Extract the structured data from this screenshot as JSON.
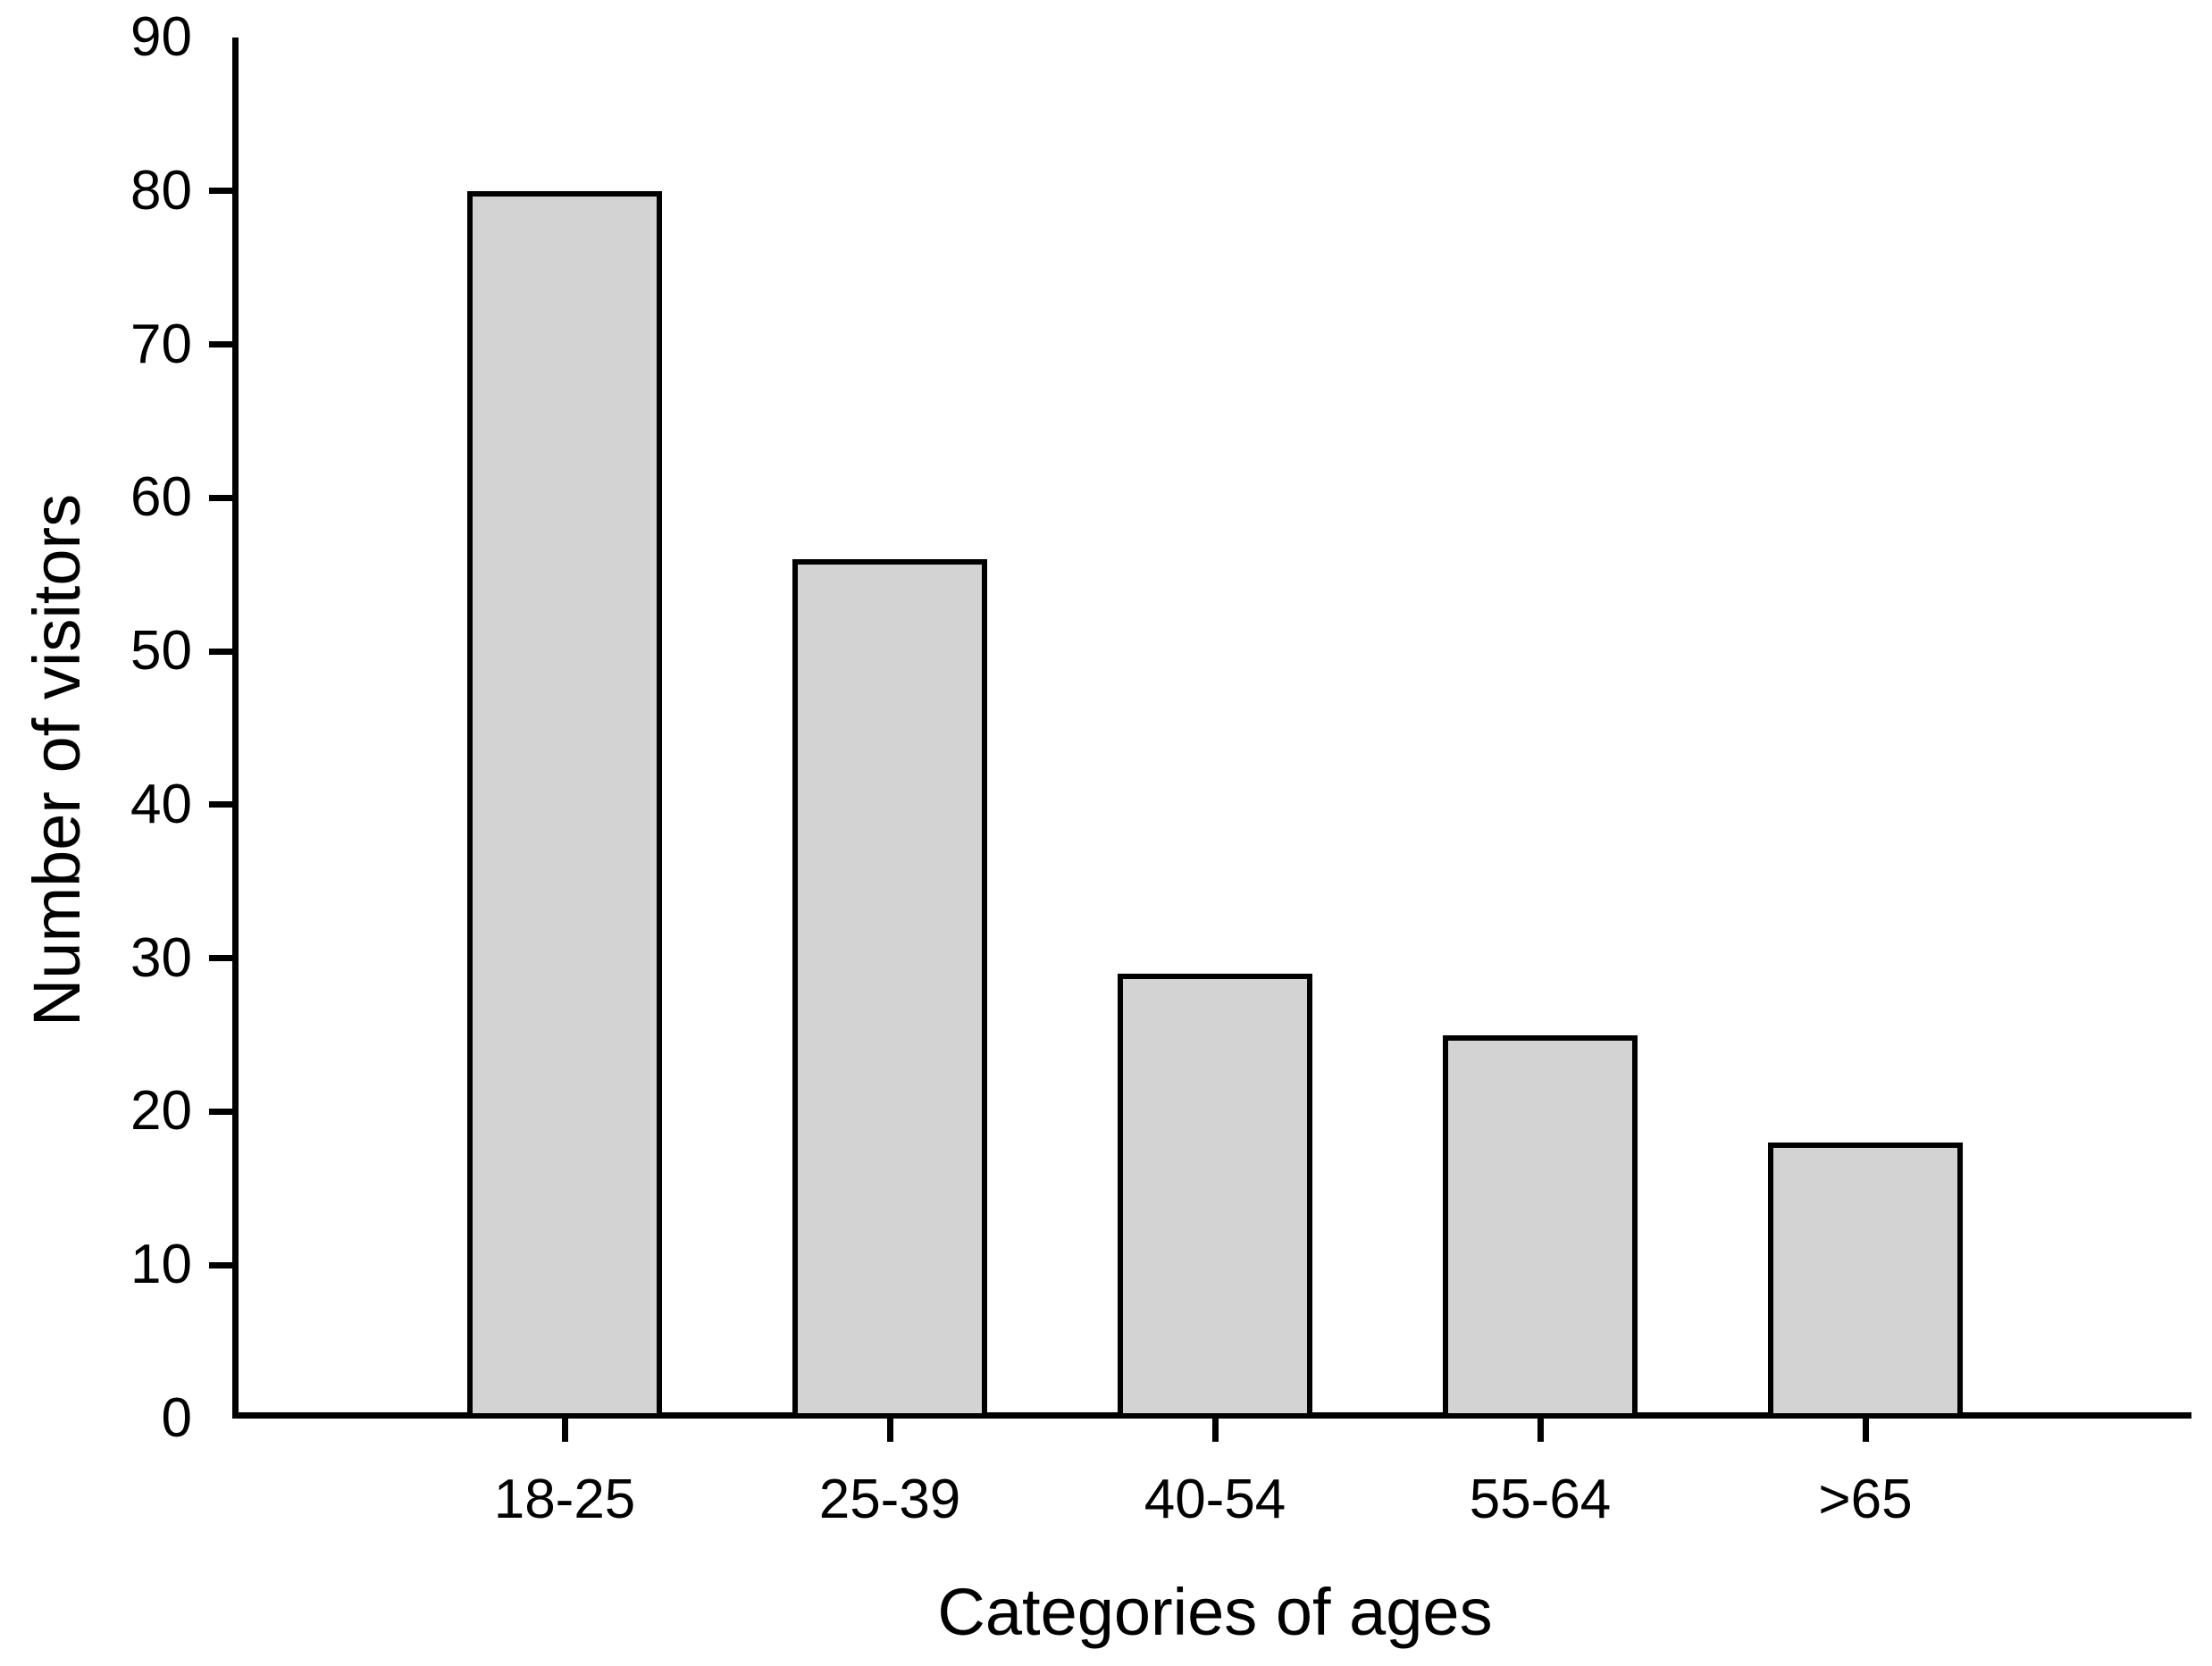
{
  "chart_data": {
    "type": "bar",
    "categories": [
      "18-25",
      "25-39",
      "40-54",
      "55-64",
      ">65"
    ],
    "values": [
      80,
      56,
      29,
      25,
      18
    ],
    "title": "",
    "xlabel": "Categories of ages",
    "ylabel": "Number of visitors",
    "ylim": [
      0,
      90
    ],
    "yticks": [
      0,
      10,
      20,
      30,
      40,
      50,
      60,
      70,
      80,
      90
    ],
    "grid": false,
    "legend": "none",
    "bar_fill_color": "#d3d3d3",
    "bar_border_color": "#000000",
    "axis_color": "#000000",
    "background_color": "#ffffff"
  }
}
